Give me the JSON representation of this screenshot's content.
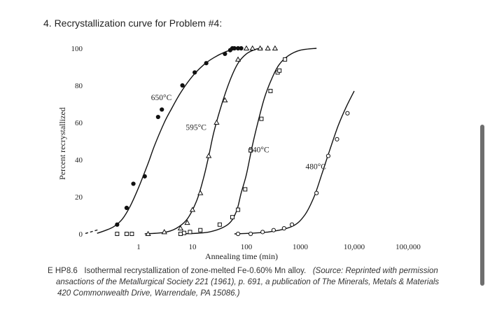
{
  "heading": "4. Recrystallization curve for Problem #4:",
  "caption": {
    "line1_label": "E HP8.6",
    "line1_text": "Isothermal recrystallization of zone-melted Fe-0.60% Mn alloy.",
    "line1_source": "(Source: Reprinted with permission",
    "line2": "ansactions of the Metallurgical Society 221 (1961), p. 691, a publication of The Minerals, Metals & Materials",
    "line3": "420 Commonwealth Drive, Warrendale, PA 15086.)"
  },
  "chart_data": {
    "type": "scatter",
    "title": "",
    "xlabel": "Annealing time (min)",
    "ylabel": "Percent recrystallized",
    "x_scale": "log",
    "xlim": [
      0.15,
      180000
    ],
    "ylim": [
      0,
      100
    ],
    "x_tick_labels": [
      {
        "value": 1,
        "label": "1"
      },
      {
        "value": 10,
        "label": "10"
      },
      {
        "value": 100,
        "label": "100"
      },
      {
        "value": 1000,
        "label": "1000"
      },
      {
        "value": 10000,
        "label": "10,000"
      },
      {
        "value": 100000,
        "label": "100,000"
      }
    ],
    "y_ticks": [
      0,
      20,
      40,
      60,
      80,
      100
    ],
    "grid": false,
    "series": [
      {
        "name": "650°C",
        "marker": "filled-circle",
        "label_at": [
          1.7,
          72
        ],
        "curve": [
          [
            0.17,
            0.3
          ],
          [
            0.25,
            2
          ],
          [
            0.35,
            4
          ],
          [
            0.5,
            8
          ],
          [
            0.7,
            15
          ],
          [
            1,
            25
          ],
          [
            1.5,
            38
          ],
          [
            2,
            48
          ],
          [
            3,
            60
          ],
          [
            4,
            67
          ],
          [
            6,
            76
          ],
          [
            10,
            85
          ],
          [
            16,
            91
          ],
          [
            25,
            95
          ],
          [
            40,
            98
          ],
          [
            60,
            99.5
          ],
          [
            80,
            100
          ]
        ],
        "points": [
          [
            0.4,
            5
          ],
          [
            0.6,
            14
          ],
          [
            0.8,
            27
          ],
          [
            1.3,
            31
          ],
          [
            2.3,
            63
          ],
          [
            2.7,
            67
          ],
          [
            6.5,
            80
          ],
          [
            11,
            87
          ],
          [
            18,
            92
          ],
          [
            40,
            97
          ],
          [
            50,
            99
          ],
          [
            55,
            100
          ],
          [
            60,
            100
          ],
          [
            70,
            100
          ],
          [
            80,
            100
          ]
        ]
      },
      {
        "name": "595°C",
        "marker": "open-triangle",
        "label_at": [
          7.5,
          56
        ],
        "curve": [
          [
            1.3,
            0
          ],
          [
            3,
            0.8
          ],
          [
            5,
            3
          ],
          [
            8,
            8
          ],
          [
            12,
            18
          ],
          [
            16,
            30
          ],
          [
            20,
            42
          ],
          [
            25,
            55
          ],
          [
            35,
            70
          ],
          [
            50,
            83
          ],
          [
            70,
            92
          ],
          [
            100,
            97
          ],
          [
            150,
            99.5
          ],
          [
            200,
            100
          ]
        ],
        "points": [
          [
            1.5,
            0
          ],
          [
            3,
            1
          ],
          [
            6,
            3
          ],
          [
            8,
            6
          ],
          [
            10,
            13
          ],
          [
            14,
            22
          ],
          [
            20,
            42
          ],
          [
            28,
            60
          ],
          [
            40,
            72
          ],
          [
            70,
            94
          ],
          [
            100,
            100
          ],
          [
            130,
            100
          ],
          [
            180,
            100
          ],
          [
            250,
            100
          ],
          [
            340,
            100
          ]
        ]
      },
      {
        "name": "540°C",
        "marker": "open-square",
        "label_at": [
          110,
          44
        ],
        "curve": [
          [
            6,
            0
          ],
          [
            20,
            1
          ],
          [
            45,
            5
          ],
          [
            65,
            12
          ],
          [
            80,
            22
          ],
          [
            100,
            32
          ],
          [
            130,
            48
          ],
          [
            170,
            62
          ],
          [
            220,
            74
          ],
          [
            300,
            84
          ],
          [
            400,
            91
          ],
          [
            600,
            96
          ],
          [
            1000,
            99
          ],
          [
            2000,
            100
          ]
        ],
        "points": [
          [
            0.4,
            0
          ],
          [
            0.6,
            0
          ],
          [
            0.75,
            0
          ],
          [
            6,
            0
          ],
          [
            7,
            0.5
          ],
          [
            9,
            1
          ],
          [
            14,
            2
          ],
          [
            32,
            5
          ],
          [
            55,
            9
          ],
          [
            70,
            13
          ],
          [
            95,
            24
          ],
          [
            120,
            45
          ],
          [
            190,
            62
          ],
          [
            280,
            77
          ],
          [
            380,
            87
          ],
          [
            410,
            88
          ],
          [
            520,
            94
          ]
        ]
      },
      {
        "name": "480°C",
        "marker": "open-circle",
        "label_at": [
          1250,
          35
        ],
        "curve": [
          [
            60,
            0
          ],
          [
            250,
            1
          ],
          [
            700,
            4
          ],
          [
            1200,
            10
          ],
          [
            1800,
            20
          ],
          [
            2500,
            32
          ],
          [
            3500,
            45
          ],
          [
            5000,
            58
          ],
          [
            7000,
            68
          ],
          [
            10000,
            77
          ]
        ],
        "points": [
          [
            70,
            0
          ],
          [
            120,
            0
          ],
          [
            200,
            1
          ],
          [
            320,
            2
          ],
          [
            500,
            3
          ],
          [
            700,
            5
          ],
          [
            2000,
            22
          ],
          [
            3300,
            42
          ],
          [
            4800,
            51
          ],
          [
            7500,
            65
          ]
        ]
      }
    ]
  }
}
